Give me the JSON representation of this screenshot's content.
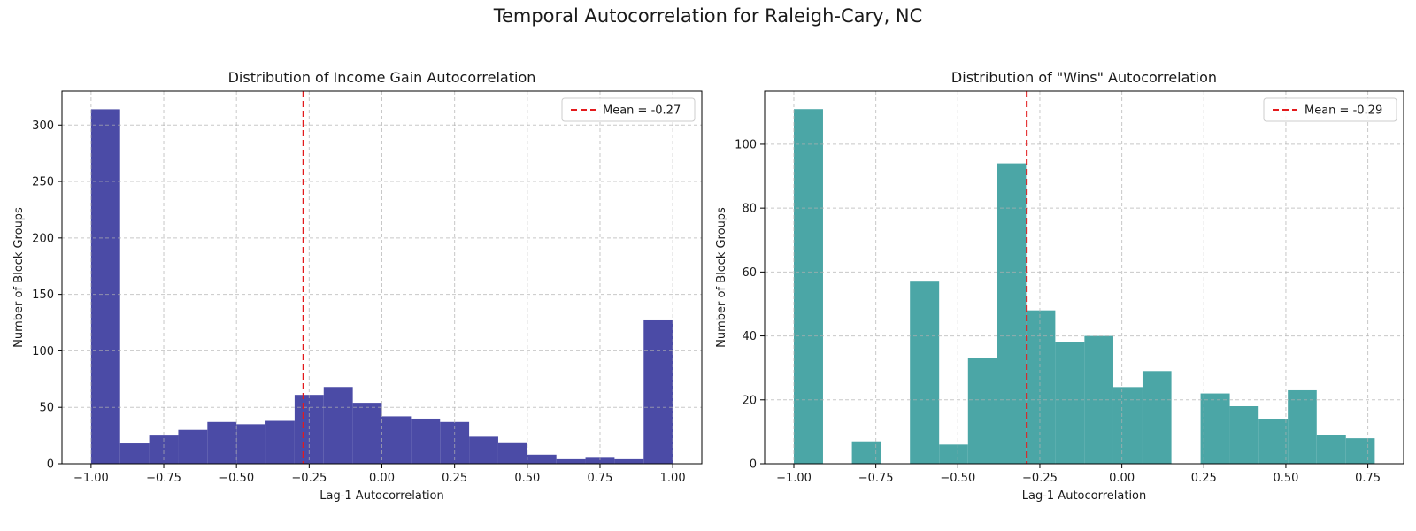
{
  "figure": {
    "suptitle": "Temporal Autocorrelation for Raleigh-Cary, NC"
  },
  "chart_data": [
    {
      "type": "bar",
      "title": "Distribution of Income Gain Autocorrelation",
      "xlabel": "Lag-1 Autocorrelation",
      "ylabel": "Number of Block Groups",
      "xlim": [
        -1.1,
        1.1
      ],
      "ylim": [
        0,
        330
      ],
      "xticks": [
        -1.0,
        -0.75,
        -0.5,
        -0.25,
        0.0,
        0.25,
        0.5,
        0.75,
        1.0
      ],
      "xtick_labels": [
        "−1.00",
        "−0.75",
        "−0.50",
        "−0.25",
        "0.00",
        "0.25",
        "0.50",
        "0.75",
        "1.00"
      ],
      "yticks": [
        0,
        50,
        100,
        150,
        200,
        250,
        300
      ],
      "ytick_labels": [
        "0",
        "50",
        "100",
        "150",
        "200",
        "250",
        "300"
      ],
      "grid": true,
      "legend_position": "top-right",
      "bar_color": "#4b4ba6",
      "bin_edges": [
        -1.0,
        -0.9,
        -0.8,
        -0.7,
        -0.6,
        -0.5,
        -0.4,
        -0.3,
        -0.2,
        -0.1,
        0.0,
        0.1,
        0.2,
        0.3,
        0.4,
        0.5,
        0.6,
        0.7,
        0.8,
        0.9,
        1.0
      ],
      "counts": [
        314,
        18,
        25,
        30,
        37,
        35,
        38,
        61,
        68,
        54,
        42,
        40,
        37,
        24,
        19,
        8,
        4,
        6,
        4,
        127
      ],
      "mean": -0.27,
      "mean_line_color": "#e31a1c",
      "legend_label": "Mean = -0.27"
    },
    {
      "type": "bar",
      "title": "Distribution of \"Wins\" Autocorrelation",
      "xlabel": "Lag-1 Autocorrelation",
      "ylabel": "Number of Block Groups",
      "xlim": [
        -1.089,
        0.859
      ],
      "ylim": [
        0,
        116.6
      ],
      "xticks": [
        -1.0,
        -0.75,
        -0.5,
        -0.25,
        0.0,
        0.25,
        0.5,
        0.75
      ],
      "xtick_labels": [
        "−1.00",
        "−0.75",
        "−0.50",
        "−0.25",
        "0.00",
        "0.25",
        "0.50",
        "0.75"
      ],
      "yticks": [
        0,
        20,
        40,
        60,
        80,
        100
      ],
      "ytick_labels": [
        "0",
        "20",
        "40",
        "60",
        "80",
        "100"
      ],
      "grid": true,
      "legend_position": "top-right",
      "bar_color": "#4ba6a6",
      "bin_edges": [
        -1.0,
        -0.911,
        -0.823,
        -0.734,
        -0.646,
        -0.557,
        -0.469,
        -0.38,
        -0.292,
        -0.203,
        -0.114,
        -0.026,
        0.063,
        0.151,
        0.24,
        0.329,
        0.417,
        0.506,
        0.594,
        0.683,
        0.771
      ],
      "counts": [
        111,
        0,
        7,
        0,
        57,
        6,
        33,
        94,
        48,
        38,
        40,
        24,
        29,
        0,
        22,
        18,
        14,
        23,
        9,
        8
      ],
      "mean": -0.29,
      "mean_line_color": "#e31a1c",
      "legend_label": "Mean = -0.29"
    }
  ]
}
